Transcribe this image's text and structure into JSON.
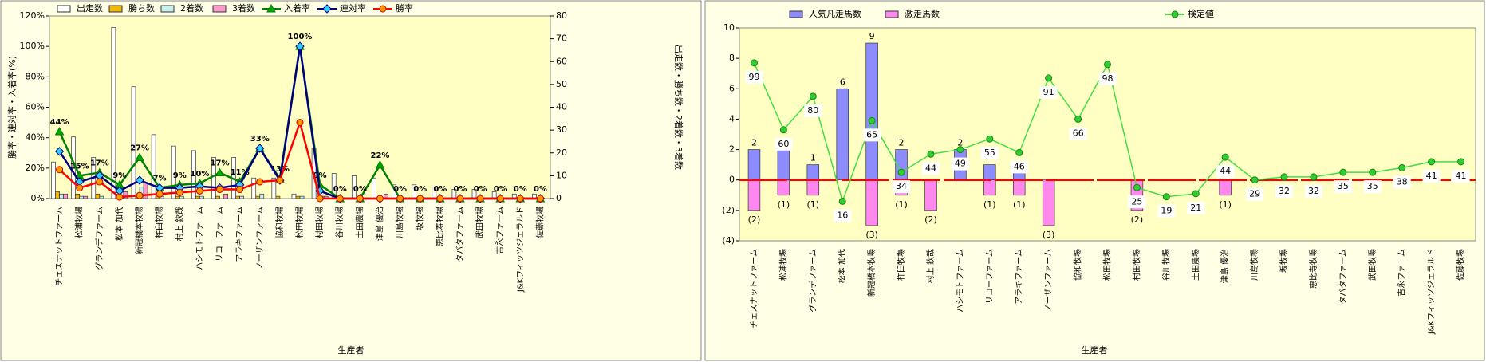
{
  "chart_data": [
    {
      "type": "combo",
      "x_label": "生産者",
      "y_label": "勝率・連対率・入着率(%)",
      "y2_label": "出走数・勝ち数・2着数・3着数",
      "bar_mode": "group",
      "categories": [
        "チェスナットファーム",
        "松浦牧場",
        "グランデファーム",
        "松本 加代",
        "新冠橋本牧場",
        "杵臼牧場",
        "村上 欽哉",
        "ハシモトファーム",
        "リコーファーム",
        "アラキファーム",
        "ノーザンファーム",
        "協和牧場",
        "松田牧場",
        "村田牧場",
        "谷川牧場",
        "土田農場",
        "津島 優治",
        "川島牧場",
        "坂牧場",
        "恵比寿牧場",
        "タバタファーム",
        "武田牧場",
        "吉永ファーム",
        "J&Kフィッツジェラルド",
        "佐藤牧場"
      ],
      "ylim": [
        0,
        120
      ],
      "yticks": [
        {
          "value": 0,
          "label": "0%"
        },
        {
          "value": 20,
          "label": "20%"
        },
        {
          "value": 40,
          "label": "40%"
        },
        {
          "value": 60,
          "label": "60%"
        },
        {
          "value": 80,
          "label": "80%"
        },
        {
          "value": 100,
          "label": "100%"
        },
        {
          "value": 120,
          "label": "120%"
        }
      ],
      "y2lim": [
        0,
        80
      ],
      "y2ticks": [
        0,
        10,
        20,
        30,
        40,
        50,
        60,
        70,
        80
      ],
      "series": [
        {
          "name": "出走数",
          "kind": "bar",
          "axis": "y2",
          "color": "#ffffff",
          "values": [
            16,
            27,
            18,
            75,
            49,
            28,
            23,
            21,
            18,
            18,
            9,
            9,
            2,
            22,
            11,
            10,
            9,
            6,
            6,
            5,
            4,
            4,
            3,
            2,
            2
          ]
        },
        {
          "name": "勝ち数",
          "kind": "bar",
          "axis": "y2",
          "color": "#f0b800",
          "values": [
            3,
            2,
            2,
            1,
            1,
            1,
            1,
            1,
            1,
            1,
            1,
            1,
            1,
            0,
            0,
            0,
            0,
            0,
            0,
            0,
            0,
            0,
            0,
            0,
            0
          ]
        },
        {
          "name": "2着数",
          "kind": "bar",
          "axis": "y2",
          "color": "#c8f0f0",
          "values": [
            2,
            1,
            1,
            3,
            5,
            1,
            1,
            1,
            0,
            1,
            2,
            0,
            1,
            1,
            0,
            0,
            0,
            0,
            0,
            0,
            0,
            0,
            0,
            0,
            0
          ]
        },
        {
          "name": "3着数",
          "kind": "bar",
          "axis": "y2",
          "color": "#ff99cc",
          "values": [
            2,
            1,
            0,
            3,
            7,
            0,
            0,
            0,
            2,
            0,
            0,
            0,
            0,
            1,
            0,
            0,
            2,
            0,
            0,
            0,
            0,
            0,
            0,
            0,
            0
          ]
        },
        {
          "name": "入着率",
          "kind": "line",
          "axis": "y",
          "color": "#008000",
          "marker": "triangle",
          "marker_fill": "#00aa00",
          "values": [
            44,
            15,
            17,
            9,
            27,
            7,
            9,
            10,
            17,
            11,
            33,
            13,
            100,
            9,
            0,
            0,
            22,
            0,
            0,
            0,
            0,
            0,
            0,
            0,
            0
          ],
          "value_labels": [
            "44%",
            "15%",
            "17%",
            "9%",
            "27%",
            "7%",
            "9%",
            "10%",
            "17%",
            "11%",
            "33%",
            "13%",
            "100%",
            "9%",
            "0%",
            "0%",
            "22%",
            "0%",
            "0%",
            "0%",
            "0%",
            "0%",
            "0%",
            "0%",
            "0%"
          ]
        },
        {
          "name": "連対率",
          "kind": "line",
          "axis": "y",
          "color": "#000080",
          "marker": "diamond",
          "marker_fill": "#33ccff",
          "values": [
            31,
            11,
            15,
            5,
            12,
            7,
            7,
            8,
            7,
            9,
            33,
            12,
            100,
            5,
            0,
            0,
            0,
            0,
            0,
            0,
            0,
            0,
            0,
            0,
            0
          ]
        },
        {
          "name": "勝率",
          "kind": "line",
          "axis": "y",
          "color": "#ff0000",
          "marker": "circle",
          "marker_fill": "#ff9900",
          "values": [
            19,
            7,
            11,
            1,
            2,
            3,
            4,
            5,
            6,
            6,
            11,
            12,
            50,
            0,
            0,
            0,
            0,
            0,
            0,
            0,
            0,
            0,
            0,
            0,
            0
          ]
        }
      ]
    },
    {
      "type": "combo",
      "x_label": "生産者",
      "bar_mode": "stack",
      "zero_line_color": "#ff0000",
      "categories": [
        "チェスナットファーム",
        "松浦牧場",
        "グランデファーム",
        "松本 加代",
        "新冠橋本牧場",
        "杵臼牧場",
        "村上 欽哉",
        "ハシモトファーム",
        "リコーファーム",
        "アラキファーム",
        "ノーザンファーム",
        "協和牧場",
        "松田牧場",
        "村田牧場",
        "谷川牧場",
        "土田農場",
        "津島 優治",
        "川島牧場",
        "坂牧場",
        "恵比寿牧場",
        "タバタファーム",
        "武田牧場",
        "吉永ファーム",
        "J&Kフィッツジェラルド",
        "佐藤牧場"
      ],
      "ylim": [
        -4,
        10
      ],
      "yticks": [
        {
          "value": -4,
          "label": "(4)"
        },
        {
          "value": -2,
          "label": "(2)"
        },
        0,
        2,
        4,
        6,
        8,
        10
      ],
      "series": [
        {
          "name": "人気凡走馬数",
          "kind": "bar",
          "axis": "y",
          "color": "#8c8cff",
          "label_color": "#000000",
          "values": [
            2,
            2,
            1,
            6,
            9,
            2,
            0,
            2,
            1,
            1,
            0,
            0,
            0,
            0,
            0,
            0,
            0,
            0,
            0,
            0,
            0,
            0,
            0,
            0,
            0
          ],
          "value_labels": [
            "2",
            null,
            "1",
            "6",
            "9",
            "2",
            null,
            "2",
            null,
            null,
            null,
            null,
            null,
            null,
            null,
            null,
            null,
            null,
            null,
            null,
            null,
            null,
            null,
            null,
            null
          ]
        },
        {
          "name": "激走馬数",
          "kind": "bar",
          "axis": "y",
          "color": "#ff88ee",
          "label_color": "#dd0000",
          "values": [
            -2,
            -1,
            -1,
            0,
            -3,
            -1,
            -2,
            0,
            -1,
            -1,
            -3,
            0,
            0,
            -2,
            0,
            0,
            -1,
            0,
            0,
            0,
            0,
            0,
            0,
            0,
            0
          ],
          "value_labels": [
            "(2)",
            "(1)",
            "(1)",
            null,
            "(3)",
            "(1)",
            "(2)",
            null,
            "(1)",
            "(1)",
            "(3)",
            null,
            null,
            "(2)",
            null,
            null,
            "(1)",
            null,
            null,
            null,
            null,
            null,
            null,
            null,
            null
          ]
        },
        {
          "name": "検定値",
          "kind": "line",
          "axis": "y",
          "color": "#44dd44",
          "marker": "circle",
          "marker_fill": "#33cc33",
          "score_color": "#339988",
          "values": [
            7.7,
            3.3,
            5.5,
            -1.4,
            3.9,
            0.5,
            1.7,
            2.0,
            2.7,
            1.8,
            6.7,
            4.0,
            7.6,
            -0.5,
            -1.1,
            -0.9,
            1.5,
            0,
            0.2,
            0.2,
            0.5,
            0.5,
            0.8,
            1.2,
            1.2
          ],
          "scores": [
            99,
            60,
            80,
            16,
            65,
            34,
            44,
            49,
            55,
            46,
            91,
            66,
            98,
            25,
            19,
            21,
            44,
            29,
            32,
            32,
            35,
            35,
            38,
            41,
            41
          ]
        }
      ]
    }
  ]
}
